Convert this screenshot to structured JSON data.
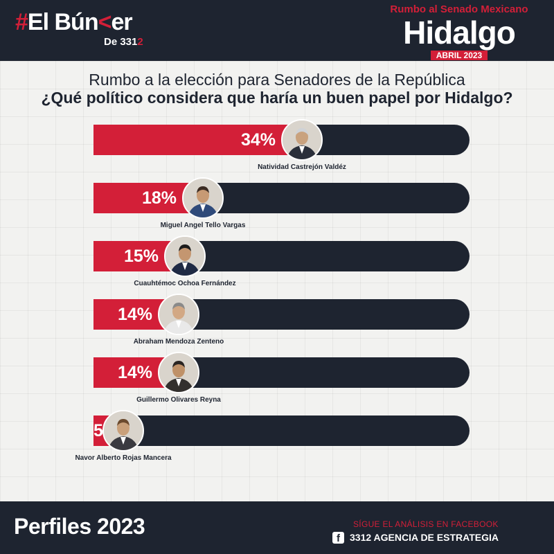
{
  "header": {
    "logo_hash": "#",
    "logo_main_1": "El Bún",
    "logo_main_mark": "<",
    "logo_main_2": "er",
    "logo_sub_1": "De 331",
    "logo_sub_2": "2",
    "kicker": "Rumbo al Senado Mexicano",
    "title": "Hidalgo",
    "date": "ABRIL 2023"
  },
  "titles": {
    "line1": "Rumbo a la elección para Senadores de la República",
    "line2": "¿Qué político considera que haría un buen papel por Hidalgo?"
  },
  "colors": {
    "accent": "#d31f38",
    "dark": "#1e2430",
    "background": "#f2f2f0"
  },
  "chart_data": {
    "type": "bar",
    "orientation": "horizontal",
    "categories": [
      "Natividad Castrejón Valdéz",
      "Miguel Angel Tello Vargas",
      "Cuauhtémoc Ochoa Fernández",
      "Abraham Mendoza Zenteno",
      "Guillermo Olivares Reyna",
      "Navor Alberto Rojas Mancera"
    ],
    "values": [
      34,
      18,
      15,
      14,
      14,
      5
    ],
    "value_labels": [
      "34%",
      "18%",
      "15%",
      "14%",
      "14%",
      "5%"
    ],
    "unit": "%",
    "title": "¿Qué político considera que haría un buen papel por Hidalgo?",
    "subtitle": "Rumbo a la elección para Senadores de la República"
  },
  "footer": {
    "title": "Perfiles 2023",
    "cta": "SÍGUE  EL  ANÁLISIS EN FACEBOOK",
    "fb_icon": "f",
    "fb_page": "3312 AGENCIA DE ESTRATEGIA"
  }
}
